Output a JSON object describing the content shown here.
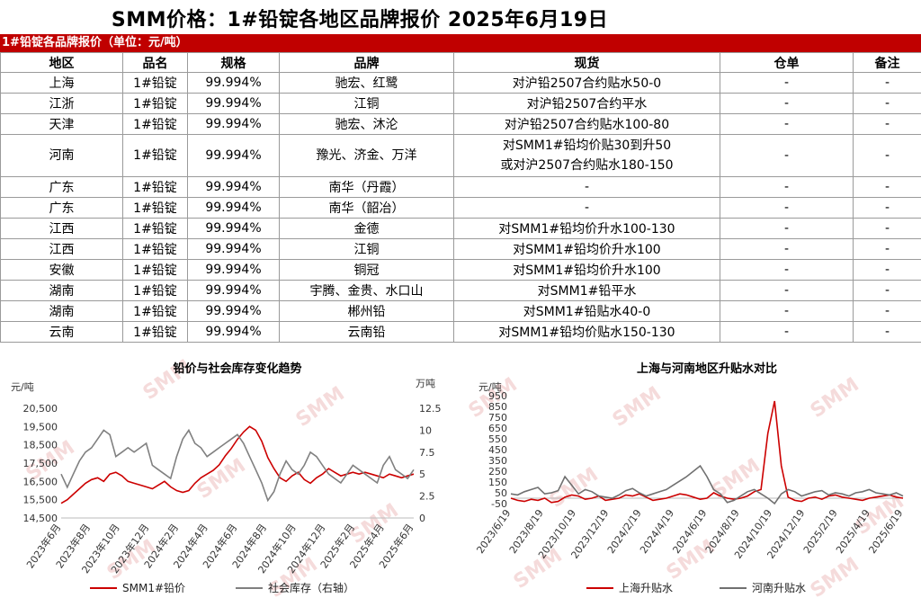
{
  "title": "SMM价格：1#铅锭各地区品牌报价 2025年6月19日",
  "table": {
    "banner": "1#铅锭各品牌报价（单位：元/吨）",
    "headers": [
      "地区",
      "品名",
      "规格",
      "品牌",
      "现货",
      "仓单",
      "备注"
    ],
    "rows": [
      {
        "region": "上海",
        "name": "1#铅锭",
        "spec": "99.994%",
        "brand": "驰宏、红鹭",
        "spot": "对沪铅2507合约贴水50-0",
        "warrant": "-",
        "note": "-"
      },
      {
        "region": "江浙",
        "name": "1#铅锭",
        "spec": "99.994%",
        "brand": "江铜",
        "spot": "对沪铅2507合约平水",
        "warrant": "-",
        "note": "-"
      },
      {
        "region": "天津",
        "name": "1#铅锭",
        "spec": "99.994%",
        "brand": "驰宏、沐沦",
        "spot": "对沪铅2507合约贴水100-80",
        "warrant": "-",
        "note": "-"
      },
      {
        "region": "河南",
        "name": "1#铅锭",
        "spec": "99.994%",
        "brand": "豫光、济金、万洋",
        "spot": "对SMM1#铅均价贴30到升50",
        "spot2": "或对沪2507合约贴水180-150",
        "warrant": "-",
        "note": "-"
      },
      {
        "region": "广东",
        "name": "1#铅锭",
        "spec": "99.994%",
        "brand": "南华（丹霞）",
        "spot": "-",
        "warrant": "-",
        "note": "-"
      },
      {
        "region": "广东",
        "name": "1#铅锭",
        "spec": "99.994%",
        "brand": "南华（韶冶）",
        "spot": "-",
        "warrant": "-",
        "note": "-"
      },
      {
        "region": "江西",
        "name": "1#铅锭",
        "spec": "99.994%",
        "brand": "金德",
        "spot": "对SMM1#铅均价升水100-130",
        "warrant": "-",
        "note": "-"
      },
      {
        "region": "江西",
        "name": "1#铅锭",
        "spec": "99.994%",
        "brand": "江铜",
        "spot": "对SMM1#铅均价升水100",
        "warrant": "-",
        "note": "-"
      },
      {
        "region": "安徽",
        "name": "1#铅锭",
        "spec": "99.994%",
        "brand": "铜冠",
        "spot": "对SMM1#铅均价升水100",
        "warrant": "-",
        "note": "-"
      },
      {
        "region": "湖南",
        "name": "1#铅锭",
        "spec": "99.994%",
        "brand": "宇腾、金贵、水口山",
        "spot": "对SMM1#铅平水",
        "warrant": "-",
        "note": "-"
      },
      {
        "region": "湖南",
        "name": "1#铅锭",
        "spec": "99.994%",
        "brand": "郴州铅",
        "spot": "对SMM1#铅贴水40-0",
        "warrant": "-",
        "note": "-"
      },
      {
        "region": "云南",
        "name": "1#铅锭",
        "spec": "99.994%",
        "brand": "云南铅",
        "spot": "对SMM1#铅均价贴水150-130",
        "warrant": "-",
        "note": "-"
      }
    ]
  },
  "watermark": "SMM",
  "chart_data": [
    {
      "type": "line",
      "title": "铅价与社会库存变化趋势",
      "ylabel": "元/吨",
      "y2label": "万吨",
      "ylim": [
        14500,
        20500
      ],
      "y2lim": [
        0,
        12.5
      ],
      "yticks": [
        "20,500",
        "19,500",
        "18,500",
        "17,500",
        "16,500",
        "15,500",
        "14,500"
      ],
      "y2ticks": [
        "12.5",
        "10",
        "7.5",
        "5",
        "2.5",
        "0"
      ],
      "xticks": [
        "2023年6月",
        "2023年8月",
        "2023年10月",
        "2023年12月",
        "2024年2月",
        "2024年4月",
        "2024年6月",
        "2024年8月",
        "2024年10月",
        "2024年12月",
        "2025年2月",
        "2025年4月",
        "2025年6月"
      ],
      "legend": "bottom",
      "series": [
        {
          "name": "SMM1#铅价",
          "axis": "left",
          "color": "#cc0000",
          "values": [
            15300,
            15500,
            15800,
            16100,
            16400,
            16600,
            16700,
            16500,
            16900,
            17000,
            16800,
            16500,
            16400,
            16300,
            16200,
            16100,
            16300,
            16500,
            16200,
            16000,
            15900,
            16000,
            16400,
            16700,
            16900,
            17100,
            17400,
            17900,
            18300,
            18800,
            19200,
            19500,
            19300,
            18700,
            17800,
            17200,
            16700,
            16500,
            16800,
            17000,
            16600,
            16400,
            16700,
            16900,
            17200,
            17000,
            16800,
            16900,
            17000,
            16900,
            17000,
            16900,
            16800,
            16700,
            16900,
            16800,
            16700,
            16800,
            16900
          ]
        },
        {
          "name": "社会库存（右轴）",
          "axis": "right",
          "color": "#808080",
          "values": [
            5.0,
            3.5,
            5.0,
            6.5,
            7.5,
            8.0,
            9.0,
            10.0,
            9.5,
            7.0,
            7.5,
            8.0,
            7.5,
            8.0,
            8.5,
            6.0,
            5.5,
            5.0,
            4.5,
            7.0,
            9.0,
            10.0,
            8.5,
            8.0,
            7.0,
            7.5,
            8.0,
            8.5,
            9.0,
            9.5,
            8.5,
            7.0,
            5.5,
            4.0,
            2.0,
            3.0,
            5.0,
            6.5,
            5.5,
            5.0,
            6.0,
            7.5,
            7.0,
            6.0,
            5.0,
            4.5,
            4.0,
            5.0,
            6.0,
            5.5,
            5.0,
            4.5,
            4.0,
            6.0,
            7.0,
            5.5,
            5.0,
            4.5,
            5.5
          ]
        }
      ]
    },
    {
      "type": "line",
      "title": "上海与河南地区升贴水对比",
      "ylabel": "元/吨",
      "ylim": [
        -50,
        950
      ],
      "yticks": [
        "950",
        "850",
        "750",
        "650",
        "550",
        "450",
        "350",
        "250",
        "150",
        "50",
        "-50"
      ],
      "xticks": [
        "2023/6/19",
        "2023/8/19",
        "2023/10/19",
        "2023/12/19",
        "2024/2/19",
        "2024/4/19",
        "2024/6/19",
        "2024/8/19",
        "2024/10/19",
        "2024/12/19",
        "2025/2/19",
        "2025/4/19",
        "2025/6/19"
      ],
      "legend": "bottom",
      "series": [
        {
          "name": "上海升贴水",
          "color": "#cc0000",
          "values": [
            0,
            -20,
            -30,
            -10,
            -20,
            0,
            -40,
            -30,
            10,
            30,
            20,
            -10,
            0,
            20,
            -20,
            -10,
            0,
            30,
            20,
            40,
            10,
            -20,
            -10,
            0,
            20,
            40,
            30,
            10,
            -10,
            0,
            50,
            20,
            0,
            -10,
            0,
            20,
            60,
            80,
            600,
            900,
            300,
            10,
            -20,
            -30,
            0,
            10,
            -10,
            20,
            30,
            10,
            0,
            -10,
            -20,
            0,
            10,
            20,
            30,
            10,
            0
          ]
        },
        {
          "name": "河南升贴水",
          "color": "#707070",
          "values": [
            40,
            30,
            60,
            80,
            100,
            40,
            50,
            70,
            200,
            120,
            40,
            80,
            60,
            20,
            10,
            0,
            30,
            70,
            90,
            50,
            20,
            40,
            60,
            80,
            120,
            160,
            200,
            250,
            300,
            200,
            80,
            40,
            -40,
            -20,
            20,
            60,
            80,
            40,
            0,
            -50,
            40,
            80,
            60,
            20,
            40,
            60,
            70,
            30,
            50,
            40,
            20,
            50,
            60,
            80,
            50,
            40,
            30,
            50,
            20
          ]
        }
      ]
    }
  ]
}
